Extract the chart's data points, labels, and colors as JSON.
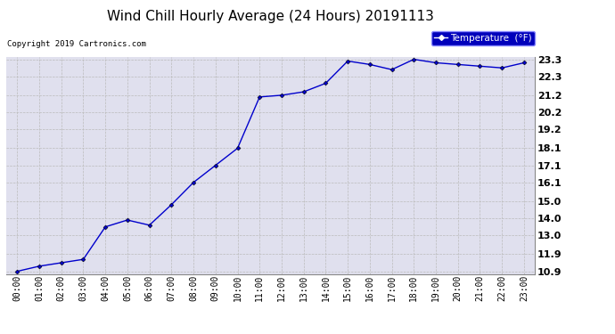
{
  "title": "Wind Chill Hourly Average (24 Hours) 20191113",
  "copyright": "Copyright 2019 Cartronics.com",
  "legend_label": "Temperature  (°F)",
  "x_labels": [
    "00:00",
    "01:00",
    "02:00",
    "03:00",
    "04:00",
    "05:00",
    "06:00",
    "07:00",
    "08:00",
    "09:00",
    "10:00",
    "11:00",
    "12:00",
    "13:00",
    "14:00",
    "15:00",
    "16:00",
    "17:00",
    "18:00",
    "19:00",
    "20:00",
    "21:00",
    "22:00",
    "23:00"
  ],
  "y_values": [
    10.9,
    11.2,
    11.4,
    11.6,
    13.5,
    13.9,
    13.6,
    14.8,
    16.1,
    17.1,
    18.1,
    21.1,
    21.2,
    21.4,
    21.9,
    23.2,
    23.0,
    22.7,
    23.3,
    23.1,
    23.0,
    22.9,
    22.8,
    23.1
  ],
  "ylim_min": 10.9,
  "ylim_max": 23.3,
  "y_ticks": [
    10.9,
    11.9,
    13.0,
    14.0,
    15.0,
    16.1,
    17.1,
    18.1,
    19.2,
    20.2,
    21.2,
    22.3,
    23.3
  ],
  "line_color": "#0000CC",
  "marker": "D",
  "marker_size": 2.5,
  "bg_color": "#E0E0EE",
  "grid_color": "#BBBBBB",
  "title_fontsize": 11,
  "axis_fontsize": 7,
  "legend_bg": "#0000BB",
  "legend_text_color": "#FFFFFF"
}
